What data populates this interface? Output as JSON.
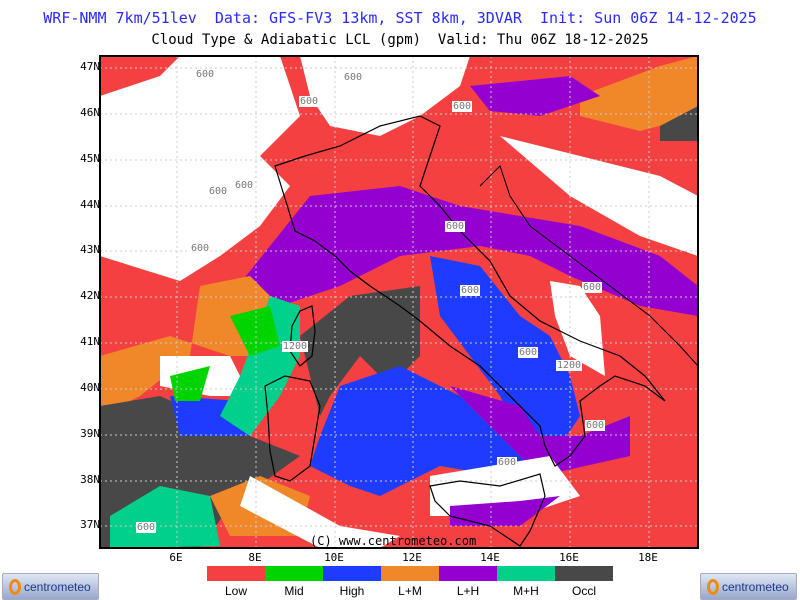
{
  "header": {
    "line1": "WRF-NMM 7km/51lev  Data: GFS-FV3 13km, SST 8km, 3DVAR  Init: Sun 06Z 14-12-2025",
    "line2": "Cloud Type & Adiabatic LCL (gpm)  Valid: Thu 06Z 18-12-2025"
  },
  "map": {
    "lat_labels": [
      "47N",
      "46N",
      "45N",
      "44N",
      "43N",
      "42N",
      "41N",
      "40N",
      "39N",
      "38N",
      "37N"
    ],
    "lon_labels": [
      "6E",
      "8E",
      "10E",
      "12E",
      "14E",
      "16E",
      "18E"
    ],
    "copyright": "(C) www.centrometeo.com",
    "contour_labels": [
      "600",
      "600",
      "600",
      "600",
      "600",
      "600",
      "600",
      "600",
      "600",
      "1200",
      "600",
      "600",
      "1200",
      "600",
      "600",
      "600"
    ]
  },
  "legend": [
    {
      "label": "Low",
      "color": "#f44040"
    },
    {
      "label": "Mid",
      "color": "#00d400"
    },
    {
      "label": "High",
      "color": "#1e3cff"
    },
    {
      "label": "L+M",
      "color": "#f0882a"
    },
    {
      "label": "L+H",
      "color": "#9400d0"
    },
    {
      "label": "M+H",
      "color": "#00d08c"
    },
    {
      "label": "Occl",
      "color": "#484848"
    }
  ],
  "logos": {
    "left": "centrometeo",
    "right": "centrometeo"
  }
}
